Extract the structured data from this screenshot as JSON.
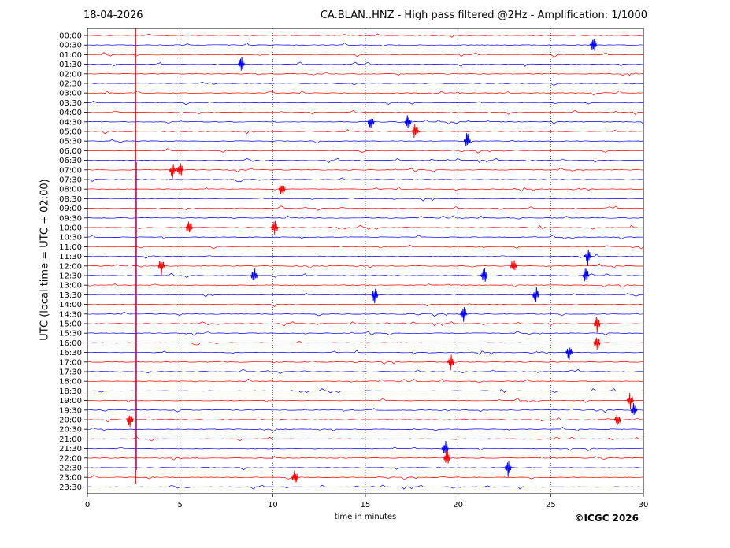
{
  "header": {
    "date": "18-04-2026",
    "title": "CA.BLAN..HNZ - High pass filtered @2Hz - Amplification: 1/1000"
  },
  "footer": {
    "copyright": "©ICGC 2026"
  },
  "chart_data": {
    "type": "line",
    "title": "CA.BLAN..HNZ - High pass filtered @2Hz - Amplification: 1/1000",
    "xlabel": "time in minutes",
    "ylabel": "UTC (local time = UTC + 02:00)",
    "xlim": [
      0,
      30
    ],
    "xticks": [
      0,
      5,
      10,
      15,
      20,
      25,
      30
    ],
    "grid_x": "dotted vertical lines at each 5 minutes",
    "rows": [
      "00:00",
      "00:30",
      "01:00",
      "01:30",
      "02:00",
      "02:30",
      "03:00",
      "03:30",
      "04:00",
      "04:30",
      "05:00",
      "05:30",
      "06:00",
      "06:30",
      "07:00",
      "07:30",
      "08:00",
      "08:30",
      "09:00",
      "09:30",
      "10:00",
      "10:30",
      "11:00",
      "11:30",
      "12:00",
      "12:30",
      "13:00",
      "13:30",
      "14:00",
      "14:30",
      "15:00",
      "15:30",
      "16:00",
      "16:30",
      "17:00",
      "17:30",
      "18:00",
      "18:30",
      "19:00",
      "19:30",
      "20:00",
      "20:30",
      "21:00",
      "21:30",
      "22:00",
      "22:30",
      "23:00",
      "23:30"
    ],
    "colors": {
      "even_row": "#ff0000",
      "odd_row": "#0000ff"
    },
    "persistent_event_minute": 2.6,
    "events": [
      {
        "row": "00:30",
        "minute": 27.3
      },
      {
        "row": "01:30",
        "minute": 8.3
      },
      {
        "row": "04:30",
        "minute": 15.3
      },
      {
        "row": "04:30",
        "minute": 17.3
      },
      {
        "row": "05:00",
        "minute": 17.7
      },
      {
        "row": "05:30",
        "minute": 20.5
      },
      {
        "row": "07:00",
        "minute": 4.6
      },
      {
        "row": "07:00",
        "minute": 5.0
      },
      {
        "row": "08:00",
        "minute": 10.5
      },
      {
        "row": "10:00",
        "minute": 5.5
      },
      {
        "row": "10:00",
        "minute": 10.1
      },
      {
        "row": "11:30",
        "minute": 27.0
      },
      {
        "row": "12:00",
        "minute": 4.0
      },
      {
        "row": "12:00",
        "minute": 23.0
      },
      {
        "row": "12:30",
        "minute": 9.0
      },
      {
        "row": "12:30",
        "minute": 21.4
      },
      {
        "row": "12:30",
        "minute": 26.9
      },
      {
        "row": "13:30",
        "minute": 15.5
      },
      {
        "row": "13:30",
        "minute": 24.2
      },
      {
        "row": "14:30",
        "minute": 20.3
      },
      {
        "row": "15:00",
        "minute": 27.5
      },
      {
        "row": "16:00",
        "minute": 27.5
      },
      {
        "row": "16:30",
        "minute": 26.0
      },
      {
        "row": "17:00",
        "minute": 19.6
      },
      {
        "row": "19:00",
        "minute": 29.3
      },
      {
        "row": "19:30",
        "minute": 29.5
      },
      {
        "row": "20:00",
        "minute": 2.3
      },
      {
        "row": "20:00",
        "minute": 28.6
      },
      {
        "row": "21:30",
        "minute": 19.3
      },
      {
        "row": "22:00",
        "minute": 19.4
      },
      {
        "row": "22:30",
        "minute": 22.7
      },
      {
        "row": "23:00",
        "minute": 11.2
      }
    ]
  }
}
